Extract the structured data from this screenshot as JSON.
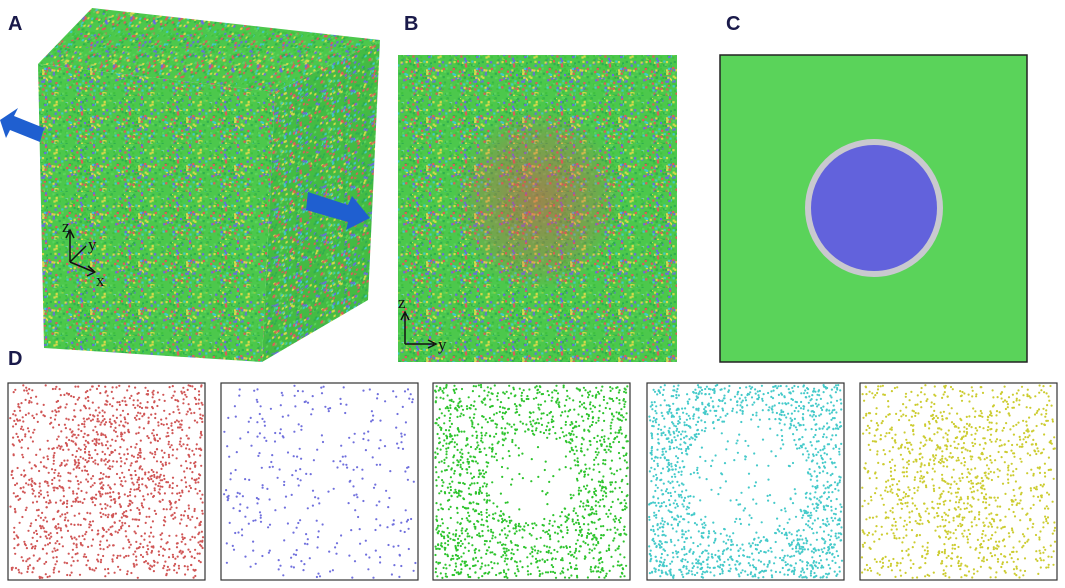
{
  "panels": [
    {
      "label": "A",
      "axes": [
        "z",
        "y",
        "x"
      ]
    },
    {
      "label": "B",
      "axes": [
        "z",
        "y"
      ]
    },
    {
      "label": "C"
    },
    {
      "label": "D"
    }
  ]
}
